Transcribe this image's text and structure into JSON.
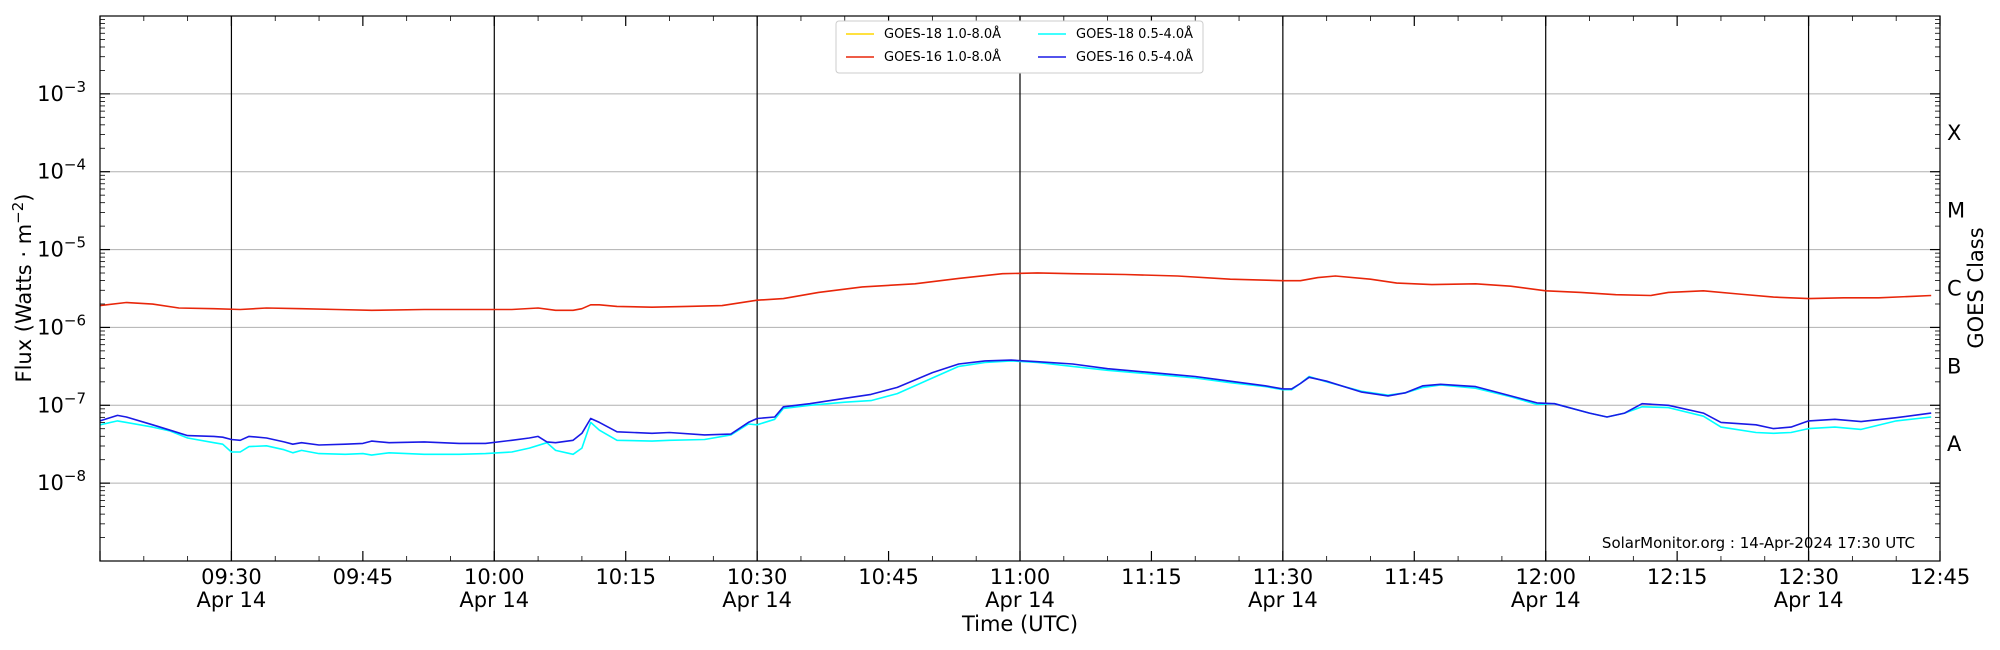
{
  "chart_data": {
    "type": "line",
    "title": "",
    "xlabel": "Time (UTC)",
    "ylabel_base": "Flux (Watts · m",
    "ylabel_exp": "−2",
    "ylabel_close": ")",
    "right_ylabel": "GOES Class",
    "yscale": "log",
    "ylim_exponent": [
      -9,
      -2
    ],
    "xlim_minutes": [
      555,
      765
    ],
    "grid": "horizontal",
    "legend_position": "top-center",
    "x_ticks": [
      {
        "minutes": 570,
        "time": "09:30",
        "date": "Apr 14"
      },
      {
        "minutes": 585,
        "time": "09:45",
        "date": ""
      },
      {
        "minutes": 600,
        "time": "10:00",
        "date": "Apr 14"
      },
      {
        "minutes": 615,
        "time": "10:15",
        "date": ""
      },
      {
        "minutes": 630,
        "time": "10:30",
        "date": "Apr 14"
      },
      {
        "minutes": 645,
        "time": "10:45",
        "date": ""
      },
      {
        "minutes": 660,
        "time": "11:00",
        "date": "Apr 14"
      },
      {
        "minutes": 675,
        "time": "11:15",
        "date": ""
      },
      {
        "minutes": 690,
        "time": "11:30",
        "date": "Apr 14"
      },
      {
        "minutes": 705,
        "time": "11:45",
        "date": ""
      },
      {
        "minutes": 720,
        "time": "12:00",
        "date": "Apr 14"
      },
      {
        "minutes": 735,
        "time": "12:15",
        "date": ""
      },
      {
        "minutes": 750,
        "time": "12:30",
        "date": "Apr 14"
      },
      {
        "minutes": 765,
        "time": "12:45",
        "date": ""
      }
    ],
    "y_ticks": [
      {
        "exp": -3,
        "base": "10",
        "sup": "−3"
      },
      {
        "exp": -4,
        "base": "10",
        "sup": "−4"
      },
      {
        "exp": -5,
        "base": "10",
        "sup": "−5"
      },
      {
        "exp": -6,
        "base": "10",
        "sup": "−6"
      },
      {
        "exp": -7,
        "base": "10",
        "sup": "−7"
      },
      {
        "exp": -8,
        "base": "10",
        "sup": "−8"
      }
    ],
    "goes_classes": [
      {
        "label": "X",
        "exp": -3.5
      },
      {
        "label": "M",
        "exp": -4.5
      },
      {
        "label": "C",
        "exp": -5.5
      },
      {
        "label": "B",
        "exp": -6.5
      },
      {
        "label": "A",
        "exp": -7.5
      }
    ],
    "series": [
      {
        "name": "GOES-18 1.0-8.0Å",
        "color": "#ffd700",
        "legend_only": true,
        "points": []
      },
      {
        "name": "GOES-16 1.0-8.0Å",
        "color": "#e8260a",
        "points": [
          [
            555,
            -5.72
          ],
          [
            558,
            -5.68
          ],
          [
            561,
            -5.7
          ],
          [
            564,
            -5.75
          ],
          [
            568,
            -5.76
          ],
          [
            571,
            -5.77
          ],
          [
            574,
            -5.75
          ],
          [
            578,
            -5.76
          ],
          [
            582,
            -5.77
          ],
          [
            586,
            -5.78
          ],
          [
            592,
            -5.77
          ],
          [
            598,
            -5.77
          ],
          [
            602,
            -5.77
          ],
          [
            605,
            -5.75
          ],
          [
            607,
            -5.78
          ],
          [
            609,
            -5.78
          ],
          [
            610,
            -5.76
          ],
          [
            611,
            -5.71
          ],
          [
            612,
            -5.71
          ],
          [
            614,
            -5.73
          ],
          [
            618,
            -5.74
          ],
          [
            622,
            -5.73
          ],
          [
            626,
            -5.72
          ],
          [
            630,
            -5.65
          ],
          [
            633,
            -5.63
          ],
          [
            637,
            -5.55
          ],
          [
            642,
            -5.48
          ],
          [
            648,
            -5.44
          ],
          [
            653,
            -5.37
          ],
          [
            658,
            -5.31
          ],
          [
            662,
            -5.3
          ],
          [
            666,
            -5.31
          ],
          [
            672,
            -5.32
          ],
          [
            678,
            -5.34
          ],
          [
            684,
            -5.38
          ],
          [
            690,
            -5.4
          ],
          [
            692,
            -5.4
          ],
          [
            694,
            -5.36
          ],
          [
            696,
            -5.34
          ],
          [
            700,
            -5.38
          ],
          [
            703,
            -5.43
          ],
          [
            707,
            -5.45
          ],
          [
            712,
            -5.44
          ],
          [
            716,
            -5.47
          ],
          [
            720,
            -5.53
          ],
          [
            724,
            -5.55
          ],
          [
            728,
            -5.58
          ],
          [
            732,
            -5.59
          ],
          [
            734,
            -5.55
          ],
          [
            738,
            -5.53
          ],
          [
            742,
            -5.57
          ],
          [
            746,
            -5.61
          ],
          [
            750,
            -5.63
          ],
          [
            754,
            -5.62
          ],
          [
            758,
            -5.62
          ],
          [
            762,
            -5.6
          ],
          [
            764,
            -5.59
          ]
        ]
      },
      {
        "name": "GOES-18 0.5-4.0Å",
        "color": "#00ffff",
        "points": [
          [
            555,
            -7.25
          ],
          [
            557,
            -7.2
          ],
          [
            558,
            -7.22
          ],
          [
            561,
            -7.28
          ],
          [
            563,
            -7.33
          ],
          [
            565,
            -7.42
          ],
          [
            568,
            -7.48
          ],
          [
            569,
            -7.5
          ],
          [
            570,
            -7.6
          ],
          [
            571,
            -7.6
          ],
          [
            572,
            -7.53
          ],
          [
            574,
            -7.52
          ],
          [
            576,
            -7.57
          ],
          [
            577,
            -7.61
          ],
          [
            578,
            -7.58
          ],
          [
            580,
            -7.62
          ],
          [
            583,
            -7.63
          ],
          [
            585,
            -7.62
          ],
          [
            586,
            -7.64
          ],
          [
            588,
            -7.61
          ],
          [
            592,
            -7.63
          ],
          [
            596,
            -7.63
          ],
          [
            599,
            -7.62
          ],
          [
            602,
            -7.6
          ],
          [
            604,
            -7.55
          ],
          [
            606,
            -7.48
          ],
          [
            607,
            -7.58
          ],
          [
            609,
            -7.63
          ],
          [
            610,
            -7.55
          ],
          [
            611,
            -7.22
          ],
          [
            612,
            -7.32
          ],
          [
            614,
            -7.45
          ],
          [
            618,
            -7.46
          ],
          [
            620,
            -7.45
          ],
          [
            624,
            -7.44
          ],
          [
            627,
            -7.38
          ],
          [
            629,
            -7.24
          ],
          [
            630,
            -7.25
          ],
          [
            632,
            -7.18
          ],
          [
            633,
            -7.04
          ],
          [
            636,
            -7.0
          ],
          [
            640,
            -6.96
          ],
          [
            643,
            -6.94
          ],
          [
            646,
            -6.85
          ],
          [
            650,
            -6.65
          ],
          [
            653,
            -6.5
          ],
          [
            656,
            -6.45
          ],
          [
            659,
            -6.43
          ],
          [
            662,
            -6.45
          ],
          [
            666,
            -6.5
          ],
          [
            670,
            -6.55
          ],
          [
            675,
            -6.6
          ],
          [
            680,
            -6.65
          ],
          [
            684,
            -6.71
          ],
          [
            688,
            -6.76
          ],
          [
            690,
            -6.8
          ],
          [
            691,
            -6.8
          ],
          [
            692,
            -6.72
          ],
          [
            693,
            -6.63
          ],
          [
            695,
            -6.7
          ],
          [
            699,
            -6.82
          ],
          [
            702,
            -6.87
          ],
          [
            704,
            -6.84
          ],
          [
            706,
            -6.77
          ],
          [
            708,
            -6.74
          ],
          [
            712,
            -6.78
          ],
          [
            716,
            -6.89
          ],
          [
            719,
            -6.99
          ],
          [
            721,
            -6.98
          ],
          [
            725,
            -7.1
          ],
          [
            727,
            -7.15
          ],
          [
            729,
            -7.1
          ],
          [
            731,
            -7.02
          ],
          [
            734,
            -7.03
          ],
          [
            738,
            -7.14
          ],
          [
            740,
            -7.28
          ],
          [
            744,
            -7.35
          ],
          [
            746,
            -7.36
          ],
          [
            748,
            -7.35
          ],
          [
            750,
            -7.3
          ],
          [
            753,
            -7.28
          ],
          [
            756,
            -7.31
          ],
          [
            760,
            -7.2
          ],
          [
            764,
            -7.15
          ]
        ]
      },
      {
        "name": "GOES-16 0.5-4.0Å",
        "color": "#1a1ae6",
        "points": [
          [
            555,
            -7.2
          ],
          [
            557,
            -7.13
          ],
          [
            558,
            -7.15
          ],
          [
            561,
            -7.25
          ],
          [
            563,
            -7.32
          ],
          [
            565,
            -7.39
          ],
          [
            568,
            -7.4
          ],
          [
            569,
            -7.41
          ],
          [
            570,
            -7.44
          ],
          [
            571,
            -7.45
          ],
          [
            572,
            -7.4
          ],
          [
            574,
            -7.42
          ],
          [
            576,
            -7.47
          ],
          [
            577,
            -7.5
          ],
          [
            578,
            -7.48
          ],
          [
            580,
            -7.51
          ],
          [
            583,
            -7.5
          ],
          [
            585,
            -7.49
          ],
          [
            586,
            -7.46
          ],
          [
            588,
            -7.48
          ],
          [
            592,
            -7.47
          ],
          [
            596,
            -7.49
          ],
          [
            599,
            -7.49
          ],
          [
            602,
            -7.45
          ],
          [
            604,
            -7.42
          ],
          [
            605,
            -7.4
          ],
          [
            606,
            -7.47
          ],
          [
            607,
            -7.48
          ],
          [
            609,
            -7.45
          ],
          [
            610,
            -7.36
          ],
          [
            611,
            -7.17
          ],
          [
            612,
            -7.22
          ],
          [
            614,
            -7.34
          ],
          [
            618,
            -7.36
          ],
          [
            620,
            -7.35
          ],
          [
            624,
            -7.38
          ],
          [
            627,
            -7.37
          ],
          [
            629,
            -7.22
          ],
          [
            630,
            -7.17
          ],
          [
            632,
            -7.15
          ],
          [
            633,
            -7.02
          ],
          [
            636,
            -6.98
          ],
          [
            640,
            -6.91
          ],
          [
            643,
            -6.86
          ],
          [
            646,
            -6.77
          ],
          [
            650,
            -6.58
          ],
          [
            653,
            -6.47
          ],
          [
            656,
            -6.43
          ],
          [
            659,
            -6.42
          ],
          [
            662,
            -6.44
          ],
          [
            666,
            -6.47
          ],
          [
            670,
            -6.53
          ],
          [
            675,
            -6.58
          ],
          [
            680,
            -6.63
          ],
          [
            684,
            -6.69
          ],
          [
            688,
            -6.75
          ],
          [
            690,
            -6.79
          ],
          [
            691,
            -6.79
          ],
          [
            692,
            -6.72
          ],
          [
            693,
            -6.64
          ],
          [
            695,
            -6.69
          ],
          [
            699,
            -6.83
          ],
          [
            702,
            -6.88
          ],
          [
            704,
            -6.84
          ],
          [
            706,
            -6.75
          ],
          [
            708,
            -6.73
          ],
          [
            712,
            -6.76
          ],
          [
            716,
            -6.88
          ],
          [
            719,
            -6.97
          ],
          [
            721,
            -6.98
          ],
          [
            725,
            -7.1
          ],
          [
            727,
            -7.15
          ],
          [
            729,
            -7.1
          ],
          [
            731,
            -6.98
          ],
          [
            734,
            -7.0
          ],
          [
            738,
            -7.1
          ],
          [
            740,
            -7.22
          ],
          [
            744,
            -7.25
          ],
          [
            746,
            -7.3
          ],
          [
            748,
            -7.28
          ],
          [
            750,
            -7.2
          ],
          [
            753,
            -7.18
          ],
          [
            756,
            -7.21
          ],
          [
            760,
            -7.16
          ],
          [
            764,
            -7.1
          ]
        ]
      }
    ],
    "annotation": "SolarMonitor.org : 14-Apr-2024 17:30 UTC"
  }
}
